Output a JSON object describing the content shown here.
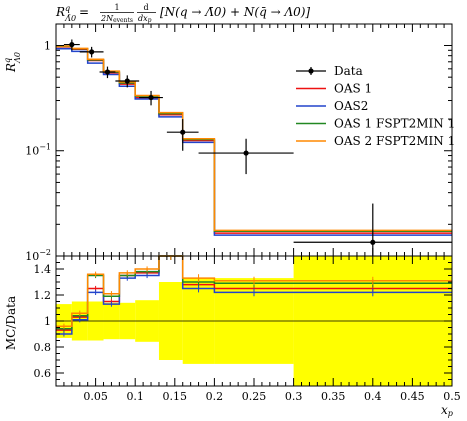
{
  "chart_data": [
    {
      "type": "line",
      "title": "R^q_Λ̄0 = 1/(2N_events) d/dx_p [N(q → Λ̄0) + N(q̄ → Λ0)]",
      "title_parts": {
        "lhs": "R",
        "lhs_sup": "q",
        "lhs_sub": "Λ̄0",
        "eq": "=",
        "frac1_num": "1",
        "frac1_den": "2N",
        "frac1_den_sub": "events",
        "frac2_num": "d",
        "frac2_den": "dx",
        "frac2_den_sub": "p",
        "bracket": "[N(q → Λ̄0) + N(q̄ → Λ0)]"
      },
      "ylabel": "R^q_Λ0",
      "ylabel_parts": {
        "base": "R",
        "sup": "q",
        "sub": "Λ0"
      },
      "xlabel": "x_p",
      "xlabel_parts": {
        "base": "x",
        "sub": "p"
      },
      "xlim": [
        0.0,
        0.5
      ],
      "ylim": [
        0.01,
        1.6
      ],
      "yscale": "log",
      "ytick_labels": [
        {
          "value": 1,
          "base": "1",
          "exp": ""
        },
        {
          "value": 0.1,
          "base": "10",
          "exp": "−1"
        },
        {
          "value": 0.01,
          "base": "10",
          "exp": "−2"
        }
      ],
      "bin_edges": [
        0.0,
        0.02,
        0.04,
        0.06,
        0.08,
        0.1,
        0.13,
        0.16,
        0.2,
        0.3,
        0.5
      ],
      "data": {
        "name": "Data",
        "color": "#000000",
        "points": [
          {
            "x": 0.02,
            "xerr": 0.01,
            "y": 1.02,
            "yerr": 0.12
          },
          {
            "x": 0.045,
            "xerr": 0.015,
            "y": 0.87,
            "yerr": 0.1
          },
          {
            "x": 0.065,
            "xerr": 0.01,
            "y": 0.56,
            "yerr": 0.07
          },
          {
            "x": 0.09,
            "xerr": 0.015,
            "y": 0.46,
            "yerr": 0.06
          },
          {
            "x": 0.12,
            "xerr": 0.015,
            "y": 0.32,
            "yerr": 0.05
          },
          {
            "x": 0.16,
            "xerr": 0.02,
            "y": 0.15,
            "yerr": 0.05
          },
          {
            "x": 0.24,
            "xerr": 0.06,
            "y": 0.095,
            "yerr": 0.035
          },
          {
            "x": 0.4,
            "xerr": 0.1,
            "y": 0.0135,
            "yerr": 0.018
          }
        ]
      },
      "series": [
        {
          "name": "OAS 1",
          "color": "#ee1111",
          "values": [
            0.97,
            0.92,
            0.72,
            0.55,
            0.43,
            0.32,
            0.22,
            0.125,
            0.0165,
            0.0165
          ]
        },
        {
          "name": "OAS2",
          "color": "#2244cc",
          "values": [
            0.93,
            0.88,
            0.68,
            0.53,
            0.41,
            0.31,
            0.21,
            0.12,
            0.0158,
            0.0158
          ]
        },
        {
          "name": "OAS 1 FSPT2MIN 1",
          "color": "#228822",
          "values": [
            0.98,
            0.93,
            0.73,
            0.56,
            0.44,
            0.33,
            0.225,
            0.128,
            0.0172,
            0.0172
          ]
        },
        {
          "name": "OAS 2 FSPT2MIN 1",
          "color": "#ff8800",
          "values": [
            0.99,
            0.94,
            0.74,
            0.57,
            0.45,
            0.335,
            0.23,
            0.13,
            0.0175,
            0.0175
          ]
        }
      ],
      "legend": "right"
    },
    {
      "type": "line",
      "ylabel": "MC/Data",
      "xlabel": "x_p",
      "xlim": [
        0.0,
        0.5
      ],
      "ylim": [
        0.5,
        1.5
      ],
      "yticks": [
        "0.6",
        "0.8",
        "1",
        "1.2",
        "1.4"
      ],
      "ytick_values": [
        0.6,
        0.8,
        1.0,
        1.2,
        1.4
      ],
      "xticks": [
        "0.05",
        "0.1",
        "0.15",
        "0.2",
        "0.25",
        "0.3",
        "0.35",
        "0.4",
        "0.45",
        "0.5"
      ],
      "xtick_values": [
        0.05,
        0.1,
        0.15,
        0.2,
        0.25,
        0.3,
        0.35,
        0.4,
        0.45,
        0.5
      ],
      "band_color": "#ffff00",
      "bin_edges": [
        0.0,
        0.02,
        0.04,
        0.06,
        0.08,
        0.1,
        0.13,
        0.16,
        0.2,
        0.3,
        0.5
      ],
      "band": [
        {
          "x0": 0.0,
          "x1": 0.02,
          "lo": 0.87,
          "hi": 1.13
        },
        {
          "x0": 0.02,
          "x1": 0.04,
          "lo": 0.85,
          "hi": 1.15
        },
        {
          "x0": 0.04,
          "x1": 0.06,
          "lo": 0.85,
          "hi": 1.15
        },
        {
          "x0": 0.06,
          "x1": 0.08,
          "lo": 0.86,
          "hi": 1.14
        },
        {
          "x0": 0.08,
          "x1": 0.1,
          "lo": 0.86,
          "hi": 1.14
        },
        {
          "x0": 0.1,
          "x1": 0.13,
          "lo": 0.84,
          "hi": 1.16
        },
        {
          "x0": 0.13,
          "x1": 0.16,
          "lo": 0.7,
          "hi": 1.3
        },
        {
          "x0": 0.16,
          "x1": 0.2,
          "lo": 0.67,
          "hi": 1.33
        },
        {
          "x0": 0.2,
          "x1": 0.3,
          "lo": 0.67,
          "hi": 1.33
        },
        {
          "x0": 0.3,
          "x1": 0.5,
          "lo": 0.5,
          "hi": 1.5
        }
      ],
      "series": [
        {
          "name": "OAS 1",
          "color": "#ee1111",
          "values": [
            0.93,
            1.03,
            1.25,
            1.15,
            1.35,
            1.37,
            1.5,
            1.28,
            1.25,
            1.25
          ],
          "errors": [
            0.02,
            0.02,
            0.02,
            0.02,
            0.02,
            0.02,
            0.03,
            0.03,
            0.03,
            0.03
          ]
        },
        {
          "name": "OAS2",
          "color": "#2244cc",
          "values": [
            0.9,
            1.01,
            1.22,
            1.13,
            1.33,
            1.35,
            1.5,
            1.25,
            1.22,
            1.22
          ],
          "errors": [
            0.02,
            0.02,
            0.02,
            0.02,
            0.02,
            0.02,
            0.03,
            0.03,
            0.03,
            0.03
          ]
        },
        {
          "name": "OAS 1 FSPT2MIN 1",
          "color": "#228822",
          "values": [
            0.94,
            1.04,
            1.35,
            1.19,
            1.35,
            1.38,
            1.5,
            1.3,
            1.29,
            1.29
          ],
          "errors": [
            0.02,
            0.02,
            0.02,
            0.02,
            0.02,
            0.02,
            0.03,
            0.03,
            0.03,
            0.03
          ]
        },
        {
          "name": "OAS 2 FSPT2MIN 1",
          "color": "#ff8800",
          "values": [
            0.96,
            1.06,
            1.36,
            1.21,
            1.37,
            1.4,
            1.5,
            1.33,
            1.31,
            1.31
          ],
          "errors": [
            0.02,
            0.02,
            0.02,
            0.02,
            0.02,
            0.02,
            0.03,
            0.03,
            0.03,
            0.03
          ]
        }
      ],
      "reference_line": 1.0
    }
  ]
}
